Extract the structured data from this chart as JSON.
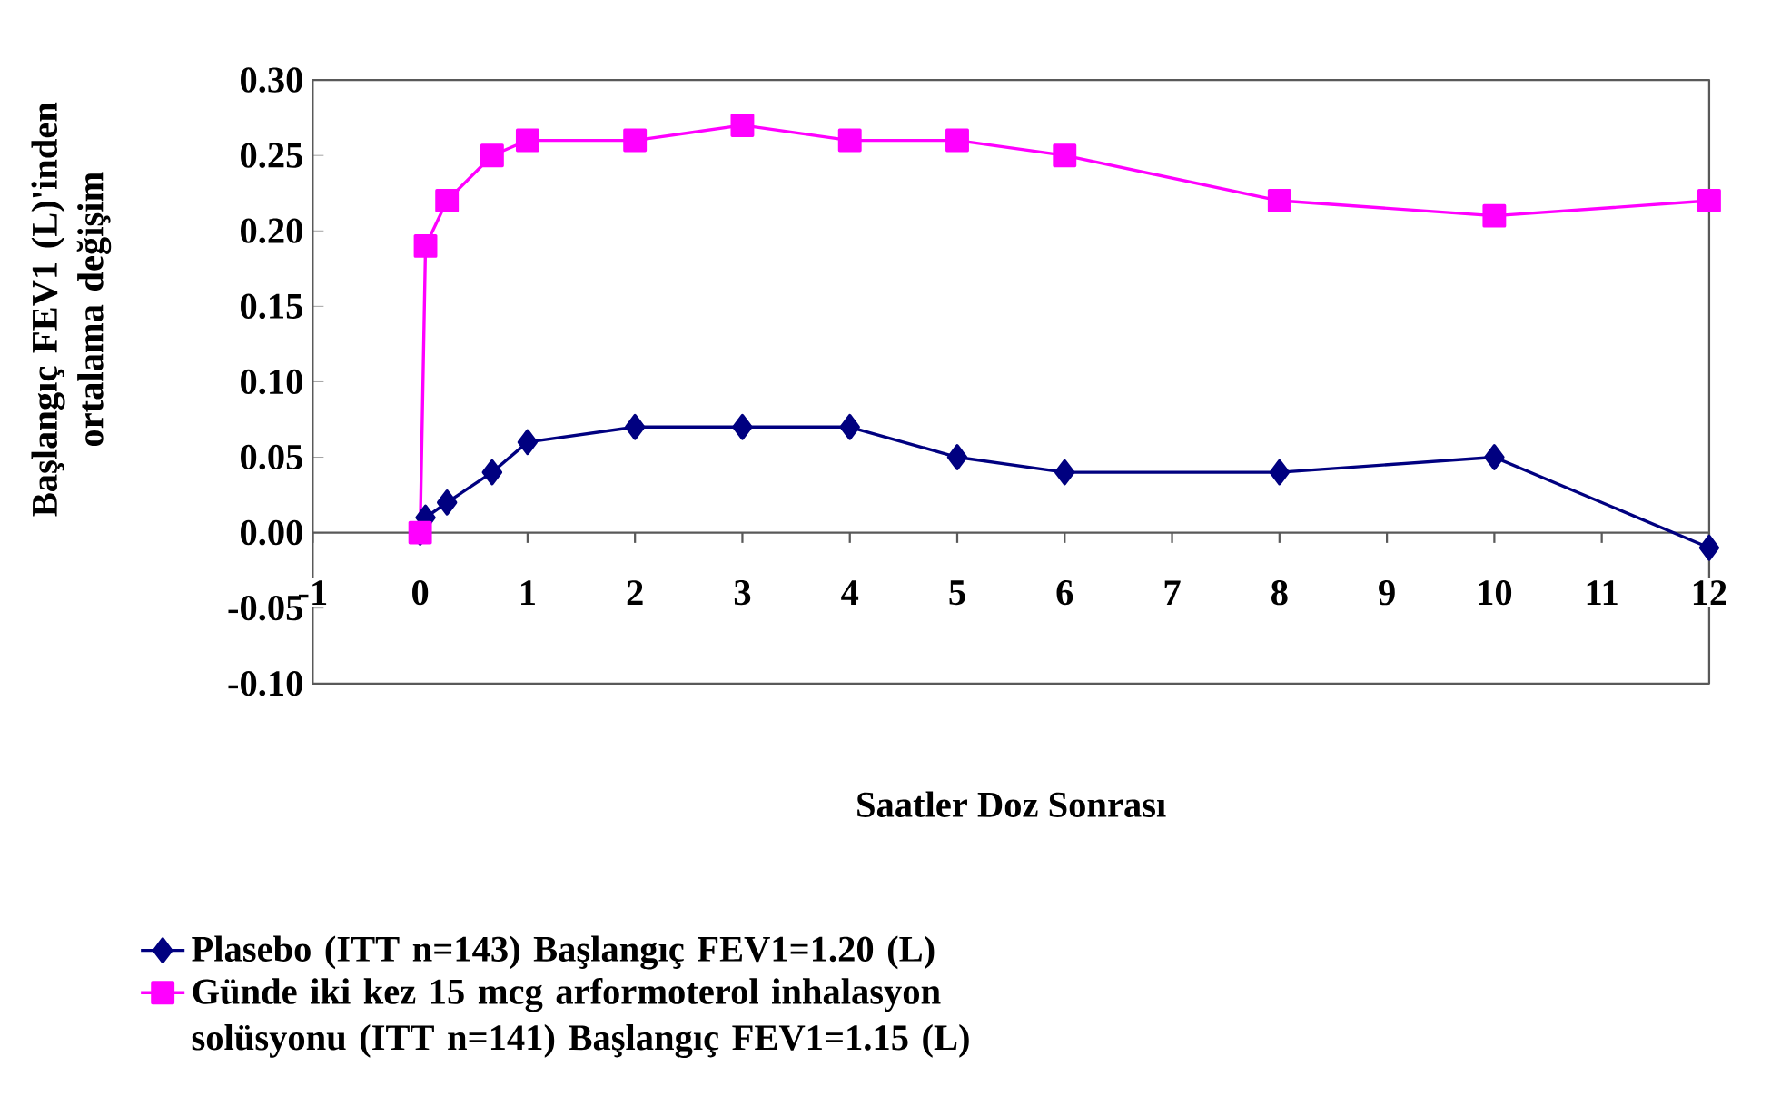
{
  "chart_data": {
    "type": "line",
    "xlabel": "Saatler Doz Sonrası",
    "ylabel": "Başlangıç FEV1 (L)'inden ortalama değişim",
    "xlim": [
      -1,
      12
    ],
    "xticks": [
      -1,
      0,
      1,
      2,
      3,
      4,
      5,
      6,
      7,
      8,
      9,
      10,
      11,
      12
    ],
    "ylim": [
      -0.1,
      0.3
    ],
    "yticks": [
      {
        "value": -0.1,
        "label": "-0.10"
      },
      {
        "value": -0.05,
        "label": "-0.05"
      },
      {
        "value": 0,
        "label": "0.00"
      },
      {
        "value": 0.05,
        "label": "0.05"
      },
      {
        "value": 0.1,
        "label": "0.10"
      },
      {
        "value": 0.15,
        "label": "0.15"
      },
      {
        "value": 0.2,
        "label": "0.20"
      },
      {
        "value": 0.25,
        "label": "0.25"
      },
      {
        "value": 0.3,
        "label": "0.30"
      }
    ],
    "grid": false,
    "legend": "bottom left",
    "series": [
      {
        "name": "Plasebo (ITT n=143) Başlangıç FEV1=1.20 (L)",
        "color": "#000080",
        "marker": "diamond",
        "x": [
          0,
          0.05,
          0.25,
          0.67,
          1,
          2,
          3,
          4,
          5,
          6,
          8,
          10,
          12
        ],
        "values": [
          0,
          0.01,
          0.02,
          0.04,
          0.06,
          0.07,
          0.07,
          0.07,
          0.05,
          0.04,
          0.04,
          0.05,
          -0.01
        ]
      },
      {
        "name": "Günde iki kez 15 mcg arformoterol inhalasyon solüsyonu  (ITT n=141) Başlangıç FEV1=1.15 (L)",
        "color": "#ff00ff",
        "marker": "square",
        "x": [
          0,
          0.05,
          0.25,
          0.67,
          1,
          2,
          3,
          4,
          5,
          6,
          8,
          10,
          12
        ],
        "values": [
          0,
          0.19,
          0.22,
          0.25,
          0.26,
          0.26,
          0.27,
          0.26,
          0.26,
          0.25,
          0.22,
          0.21,
          0.22
        ]
      }
    ]
  }
}
